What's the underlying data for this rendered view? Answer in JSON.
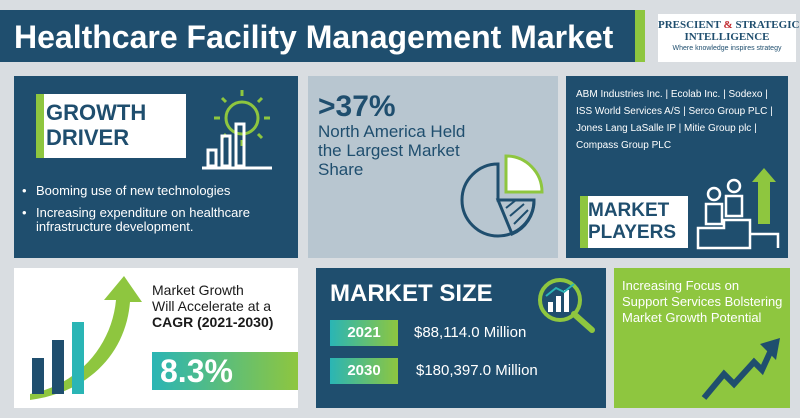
{
  "header": {
    "title": "Healthcare Facility Management Market",
    "logo_line1_a": "PRESCIENT",
    "logo_line1_amp": "&",
    "logo_line1_b": "STRATEGIC",
    "logo_line2": "INTELLIGENCE",
    "logo_tagline": "Where knowledge inspires strategy"
  },
  "growth_driver": {
    "title_line1": "GROWTH",
    "title_line2": "DRIVER",
    "items": [
      "Booming use of new technologies",
      "Increasing expenditure on healthcare infrastructure development."
    ]
  },
  "regional": {
    "percent": ">37%",
    "text": "North America Held the Largest Market Share"
  },
  "market_players": {
    "list_text": "ABM Industries Inc. | Ecolab Inc. | Sodexo | ISS World Services A/S | Serco Group PLC | Jones Lang LaSalle IP | Mitie Group plc | Compass Group PLC",
    "title_line1": "MARKET",
    "title_line2": "PLAYERS"
  },
  "cagr": {
    "text_line1": "Market Growth",
    "text_line2": "Will Accelerate at a",
    "text_bold": "CAGR (2021-2030)",
    "value": "8.3%"
  },
  "market_size": {
    "title": "MARKET SIZE",
    "rows": [
      {
        "year": "2021",
        "value": "$88,114.0 Million"
      },
      {
        "year": "2030",
        "value": "$180,397.0 Million"
      }
    ]
  },
  "support": {
    "text": "Increasing Focus on Support Services Bolstering Market Growth Potential"
  },
  "colors": {
    "navy": "#1f4e6e",
    "green": "#8ec63f",
    "teal": "#2ab5b5",
    "light_blue_gray": "#b8c6d0",
    "background": "#d9dde1"
  },
  "icons": {
    "growth": "gear-bar-chart-icon",
    "region": "pie-chart-icon",
    "players": "people-podium-icon",
    "cagr": "rising-bars-arrow-icon",
    "size": "magnifier-chart-icon",
    "support": "trend-arrow-icon"
  }
}
